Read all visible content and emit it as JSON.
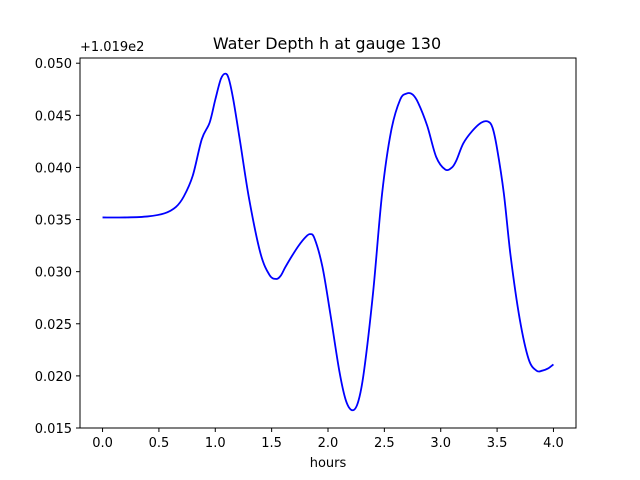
{
  "chart_data": {
    "type": "line",
    "title": "Water Depth h at gauge 130",
    "xlabel": "hours",
    "ylabel": "",
    "y_offset_label": "+1.019e2",
    "xlim": [
      -0.2,
      4.2
    ],
    "ylim": [
      0.015,
      0.0505
    ],
    "x_ticks": [
      0.0,
      0.5,
      1.0,
      1.5,
      2.0,
      2.5,
      3.0,
      3.5,
      4.0
    ],
    "x_tick_labels": [
      "0.0",
      "0.5",
      "1.0",
      "1.5",
      "2.0",
      "2.5",
      "3.0",
      "3.5",
      "4.0"
    ],
    "y_ticks": [
      0.015,
      0.02,
      0.025,
      0.03,
      0.035,
      0.04,
      0.045,
      0.05
    ],
    "y_tick_labels": [
      "0.015",
      "0.020",
      "0.025",
      "0.030",
      "0.035",
      "0.040",
      "0.045",
      "0.050"
    ],
    "grid": false,
    "series": [
      {
        "color": "#0000ff",
        "x": [
          0.0,
          0.2,
          0.4,
          0.55,
          0.65,
          0.72,
          0.8,
          0.88,
          0.95,
          1.0,
          1.05,
          1.09,
          1.12,
          1.16,
          1.22,
          1.3,
          1.4,
          1.48,
          1.54,
          1.58,
          1.62,
          1.68,
          1.74,
          1.8,
          1.84,
          1.88,
          1.95,
          2.02,
          2.1,
          2.16,
          2.22,
          2.27,
          2.32,
          2.4,
          2.48,
          2.56,
          2.64,
          2.7,
          2.75,
          2.8,
          2.88,
          2.96,
          3.04,
          3.1,
          3.14,
          3.2,
          3.28,
          3.36,
          3.42,
          3.46,
          3.5,
          3.56,
          3.62,
          3.7,
          3.78,
          3.85,
          3.9,
          3.95,
          4.0
        ],
        "y": [
          0.0352,
          0.0352,
          0.0353,
          0.0356,
          0.0362,
          0.0372,
          0.0392,
          0.0427,
          0.0443,
          0.0465,
          0.0485,
          0.049,
          0.0485,
          0.0465,
          0.0425,
          0.037,
          0.0318,
          0.0297,
          0.0293,
          0.0296,
          0.0304,
          0.0315,
          0.0325,
          0.0333,
          0.0336,
          0.0332,
          0.0305,
          0.026,
          0.0205,
          0.0176,
          0.0167,
          0.0176,
          0.0205,
          0.028,
          0.0375,
          0.0435,
          0.0465,
          0.0471,
          0.047,
          0.0462,
          0.044,
          0.041,
          0.0398,
          0.04,
          0.0407,
          0.0423,
          0.0435,
          0.0443,
          0.0444,
          0.0438,
          0.0418,
          0.0375,
          0.0315,
          0.0255,
          0.0216,
          0.0205,
          0.0205,
          0.0207,
          0.0211
        ]
      }
    ]
  }
}
